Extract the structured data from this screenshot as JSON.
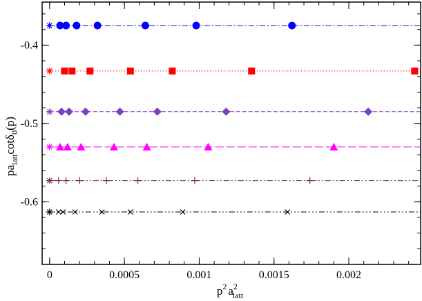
{
  "chart_data": {
    "type": "scatter",
    "xlabel": {
      "base": "p",
      "sup1": "2",
      "mid": "a",
      "sup2": "2",
      "sub": "latt"
    },
    "ylabel": {
      "p1": "pa",
      "sub1": "latt",
      "p2": "cotδ",
      "sub2": "0",
      "p3": "(p)"
    },
    "xlim": [
      -5e-05,
      0.00248
    ],
    "ylim": [
      -0.68,
      -0.345
    ],
    "x_ticks": [
      0,
      0.0005,
      0.001,
      0.0015,
      0.002
    ],
    "x_tick_labels": [
      "0",
      "0.0005",
      "0.001",
      "0.0015",
      "0.002"
    ],
    "x_minor_step": 0.0001,
    "y_ticks": [
      -0.4,
      -0.5,
      -0.6
    ],
    "y_tick_labels": [
      "-0.4",
      "-0.5",
      "-0.6"
    ],
    "y_minor_step": 0.02,
    "grid": false,
    "series": [
      {
        "color": "#0000ff",
        "marker": "circle",
        "line": "dash-dot",
        "fit_y": -0.375,
        "x": [
          7e-05,
          0.00011,
          0.00018,
          0.00032,
          0.00064,
          0.00098,
          0.00162
        ],
        "y": [
          -0.375,
          -0.375,
          -0.375,
          -0.375,
          -0.375,
          -0.375,
          -0.375
        ]
      },
      {
        "color": "#ff0000",
        "marker": "square",
        "line": "dotted",
        "fit_y": -0.433,
        "x": [
          0.0001,
          0.00015,
          0.00027,
          0.00054,
          0.00082,
          0.00135,
          0.00244
        ],
        "y": [
          -0.433,
          -0.433,
          -0.433,
          -0.433,
          -0.433,
          -0.433,
          -0.433
        ]
      },
      {
        "color": "#7b3fc0",
        "marker": "diamond",
        "line": "dashed",
        "fit_y": -0.485,
        "x": [
          8e-05,
          0.00013,
          0.00024,
          0.00047,
          0.00072,
          0.00118,
          0.00213
        ],
        "y": [
          -0.485,
          -0.485,
          -0.485,
          -0.485,
          -0.485,
          -0.485,
          -0.485
        ]
      },
      {
        "color": "#ff00ff",
        "marker": "triangle",
        "line": "long-dash",
        "fit_y": -0.53,
        "x": [
          7e-05,
          0.00012,
          0.00021,
          0.00043,
          0.00065,
          0.00106,
          0.0019
        ],
        "y": [
          -0.53,
          -0.53,
          -0.53,
          -0.53,
          -0.53,
          -0.53,
          -0.53
        ]
      },
      {
        "color": "#7a2a50",
        "marker": "plus",
        "line": "dash-dot-dot",
        "fit_y": -0.573,
        "x": [
          6e-05,
          0.00011,
          0.0002,
          0.00038,
          0.00059,
          0.00097,
          0.00174
        ],
        "y": [
          -0.573,
          -0.573,
          -0.573,
          -0.573,
          -0.573,
          -0.573,
          -0.573
        ]
      },
      {
        "color": "#000000",
        "marker": "cross",
        "line": "dash-dot-dot-dot",
        "fit_y": -0.613,
        "x": [
          6e-05,
          9e-05,
          0.00017,
          0.00035,
          0.00054,
          0.00089,
          0.00159
        ],
        "y": [
          -0.613,
          -0.613,
          -0.613,
          -0.613,
          -0.613,
          -0.613,
          -0.613
        ]
      }
    ],
    "extrapolated": {
      "marker": "asterisk",
      "x": [
        0,
        0,
        0,
        0,
        0,
        0
      ],
      "y": [
        -0.375,
        -0.433,
        -0.485,
        -0.53,
        -0.573,
        -0.613
      ],
      "colors": [
        "#0000ff",
        "#ff0000",
        "#7b3fc0",
        "#ff00ff",
        "#7a2a50",
        "#000000"
      ]
    }
  }
}
